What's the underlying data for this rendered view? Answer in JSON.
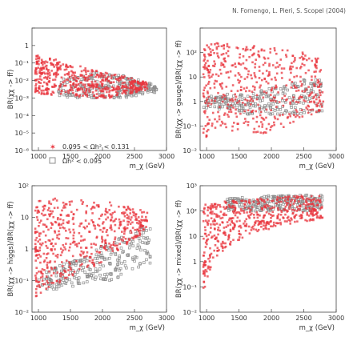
{
  "credit": "N. Fornengo, L. Pieri, S. Scopel (2004)",
  "colors": {
    "red": "#e8343c",
    "gray": "#8c8c8c"
  },
  "legend": [
    {
      "symbol": "red-cross",
      "label": "0.095 < Ωh² < 0.131"
    },
    {
      "symbol": "gray-square",
      "label": "Ωh² < 0.095"
    }
  ],
  "chart_data": [
    {
      "type": "scatter",
      "xlabel": "m_χ (GeV)",
      "ylabel": "BR(χχ -> ff)",
      "xlim": [
        900,
        3000
      ],
      "ylim": [
        1e-06,
        10
      ],
      "yscale": "log",
      "xticks": [
        "1000",
        "1500",
        "2000",
        "2500",
        "3000"
      ],
      "yticks": [
        "10⁻⁶",
        "10⁻⁵",
        "10⁻⁴",
        "10⁻³",
        "10⁻²",
        "10⁻¹",
        "1"
      ],
      "series": [
        {
          "name": "0.095 < Ωh² < 0.131",
          "color": "red",
          "x": [
            950,
            1100,
            1300,
            1500,
            1700,
            1900,
            2100,
            2300,
            2500,
            2700
          ],
          "y_upper": [
            0.4,
            0.25,
            0.15,
            0.1,
            0.06,
            0.04,
            0.03,
            0.02,
            0.012,
            0.008
          ],
          "y_lower": [
            0.002,
            0.0015,
            0.0015,
            0.0012,
            0.0012,
            0.001,
            0.001,
            0.0015,
            0.002,
            0.003
          ]
        },
        {
          "name": "Ωh² < 0.095",
          "color": "gray",
          "x": [
            1300,
            1600,
            1900,
            2100,
            2300,
            2500,
            2700,
            2850
          ],
          "y_upper": [
            0.01,
            0.02,
            0.03,
            0.025,
            0.02,
            0.012,
            0.008,
            0.005
          ],
          "y_lower": [
            0.001,
            0.001,
            0.001,
            0.001,
            0.001,
            0.0012,
            0.002,
            0.002
          ]
        }
      ]
    },
    {
      "type": "scatter",
      "xlabel": "m_χ (GeV)",
      "ylabel": "BR(χχ -> gauge)/BR(χχ -> ff)",
      "xlim": [
        900,
        3000
      ],
      "ylim": [
        0.01,
        1000
      ],
      "yscale": "log",
      "xticks": [
        "1000",
        "1500",
        "2000",
        "2500",
        "3000"
      ],
      "yticks": [
        "10⁻²",
        "10⁻¹",
        "1",
        "10",
        "10²"
      ],
      "series": [
        {
          "name": "0.095 < Ωh² < 0.131",
          "color": "red",
          "x": [
            950,
            1100,
            1300,
            1500,
            1700,
            1900,
            2100,
            2300,
            2500,
            2800
          ],
          "y_upper": [
            300,
            250,
            250,
            200,
            200,
            150,
            150,
            120,
            100,
            50
          ],
          "y_lower": [
            0.03,
            0.05,
            0.05,
            0.05,
            0.05,
            0.05,
            0.08,
            0.1,
            0.2,
            0.5
          ]
        },
        {
          "name": "Ωh² < 0.095",
          "color": "gray",
          "x": [
            950,
            1300,
            1600,
            1900,
            2200,
            2500,
            2800
          ],
          "y_upper": [
            1.5,
            2,
            2,
            3,
            5,
            8,
            10
          ],
          "y_lower": [
            0.5,
            0.5,
            0.3,
            0.3,
            0.3,
            0.3,
            0.3
          ]
        }
      ]
    },
    {
      "type": "scatter",
      "xlabel": "m_χ (GeV)",
      "ylabel": "BR(χχ -> higgs)/BR(χχ -> ff)",
      "xlim": [
        900,
        3000
      ],
      "ylim": [
        0.01,
        100
      ],
      "yscale": "log",
      "xticks": [
        "1000",
        "1500",
        "2000",
        "2500",
        "3000"
      ],
      "yticks": [
        "10⁻²",
        "10⁻¹",
        "1",
        "10",
        "10²"
      ],
      "series": [
        {
          "name": "0.095 < Ωh² < 0.131",
          "color": "red",
          "x": [
            950,
            1100,
            1300,
            1500,
            1700,
            1900,
            2100,
            2300,
            2500,
            2700
          ],
          "y_upper": [
            40,
            40,
            40,
            35,
            35,
            30,
            30,
            25,
            20,
            15
          ],
          "y_lower": [
            0.03,
            0.05,
            0.08,
            0.1,
            0.2,
            0.3,
            0.5,
            1,
            2,
            4
          ]
        },
        {
          "name": "Ωh² < 0.095",
          "color": "gray",
          "x": [
            1000,
            1300,
            1600,
            1900,
            2200,
            2500,
            2750
          ],
          "y_upper": [
            0.15,
            0.3,
            0.5,
            1,
            2,
            4,
            8
          ],
          "y_lower": [
            0.05,
            0.05,
            0.07,
            0.1,
            0.1,
            0.2,
            0.3
          ]
        }
      ]
    },
    {
      "type": "scatter",
      "xlabel": "m_χ (GeV)",
      "ylabel": "BR(χχ -> mixed)/BR(χχ -> ff)",
      "xlim": [
        900,
        3000
      ],
      "ylim": [
        0.01,
        1000
      ],
      "yscale": "log",
      "xticks": [
        "1000",
        "1500",
        "2000",
        "2500",
        "3000"
      ],
      "yticks": [
        "10⁻²",
        "10⁻¹",
        "1",
        "10",
        "10²",
        "10³"
      ],
      "series": [
        {
          "name": "0.095 < Ωh² < 0.131",
          "color": "red",
          "x": [
            950,
            1000,
            1100,
            1200,
            1400,
            1600,
            1800,
            2000,
            2300,
            2600,
            2800
          ],
          "y_upper": [
            150,
            200,
            200,
            250,
            250,
            300,
            300,
            350,
            400,
            400,
            400
          ],
          "y_lower": [
            0.05,
            0.2,
            1,
            2,
            5,
            10,
            15,
            20,
            30,
            40,
            50
          ]
        },
        {
          "name": "Ωh² < 0.095",
          "color": "gray",
          "x": [
            1300,
            1600,
            1900,
            2200,
            2500,
            2800
          ],
          "y_upper": [
            300,
            350,
            400,
            400,
            450,
            450
          ],
          "y_lower": [
            100,
            100,
            100,
            100,
            100,
            100
          ]
        }
      ]
    }
  ]
}
